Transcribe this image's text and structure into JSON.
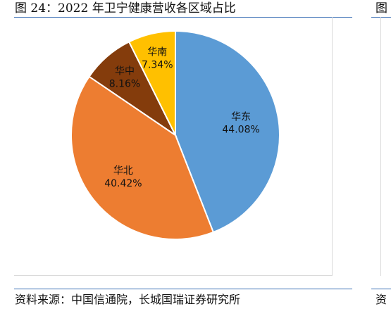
{
  "figure": {
    "title": "图 24：2022 年卫宁健康营收各区域占比",
    "source": "资料来源：中国信通院，长城国瑞证券研究所",
    "neighbor_title": "图",
    "neighbor_source": "资"
  },
  "chart_data": {
    "type": "pie",
    "title": "",
    "slices": [
      {
        "label": "华东",
        "value": 44.08,
        "display": "44.08%",
        "color": "#5b9bd5"
      },
      {
        "label": "华北",
        "value": 40.42,
        "display": "40.42%",
        "color": "#ed7d31"
      },
      {
        "label": "华中",
        "value": 8.16,
        "display": "8.16%",
        "color": "#843c0c"
      },
      {
        "label": "华南",
        "value": 7.34,
        "display": "7.34%",
        "color": "#ffc000"
      }
    ],
    "start_angle": "12 o'clock",
    "direction": "clockwise",
    "legend": "none"
  }
}
